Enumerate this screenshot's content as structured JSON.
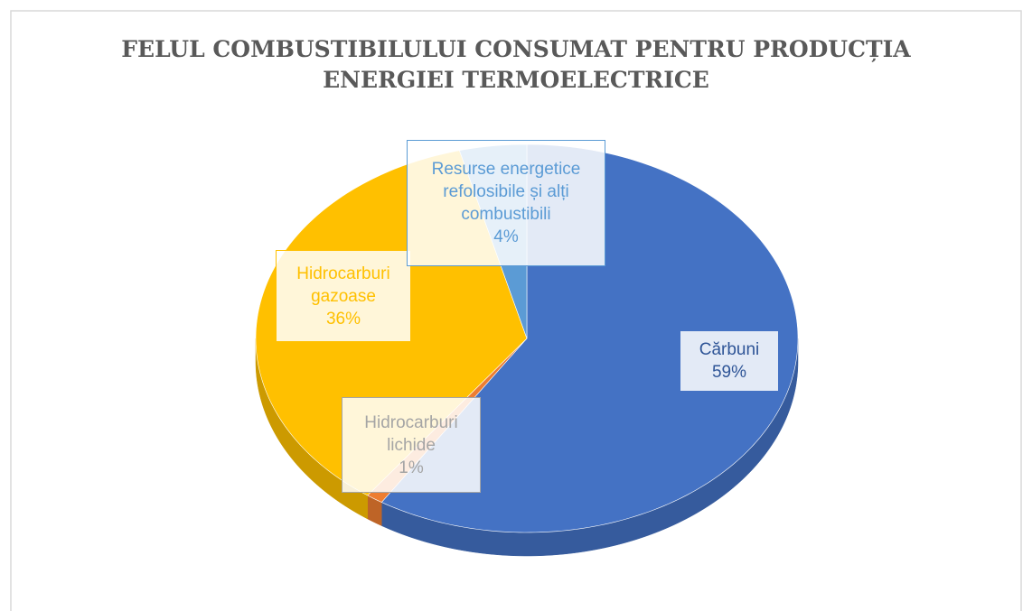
{
  "chart_data": {
    "type": "pie",
    "title": "FELUL COMBUSTIBILULUI CONSUMAT PENTRU PRODUCȚIA ENERGIEI TERMOELECTRICE",
    "categories": [
      "Cărbuni",
      "Hidrocarburi lichide",
      "Hidrocarburi gazoase",
      "Resurse energetice refolosibile și alți combustibili"
    ],
    "values": [
      59,
      1,
      36,
      4
    ],
    "value_labels": [
      "59%",
      "1%",
      "36%",
      "4%"
    ],
    "colors": [
      "#4472c4",
      "#ed7d31",
      "#ffc000",
      "#5b9bd5"
    ]
  }
}
